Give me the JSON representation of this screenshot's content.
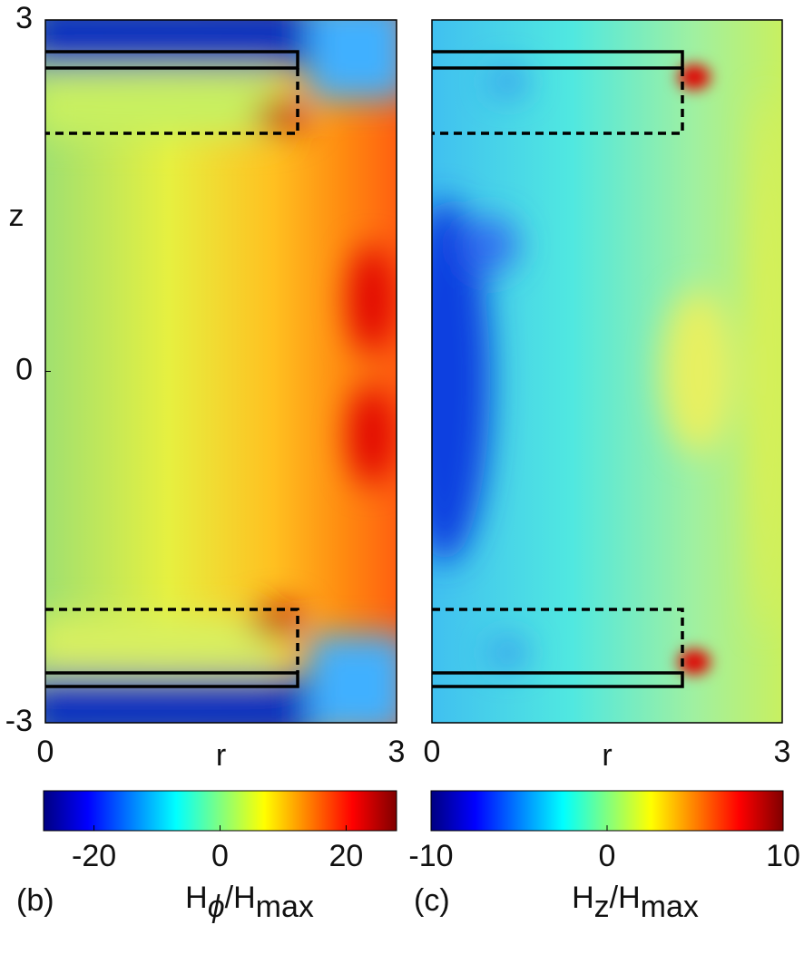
{
  "chart_data": [
    {
      "type": "heatmap",
      "panel_label": "(b)",
      "xlabel": "r",
      "ylabel": "z",
      "xlim": [
        0,
        3
      ],
      "ylim": [
        -3,
        3
      ],
      "xticks": [
        0,
        3
      ],
      "yticks": [
        -3,
        0,
        3
      ],
      "colorbar": {
        "label": [
          "H",
          "ϕ",
          "/H",
          "max"
        ],
        "clim": [
          -28,
          28
        ],
        "ticks": [
          -20,
          0,
          20
        ],
        "colormap": [
          "#000080",
          "#0000ff",
          "#0080ff",
          "#00ffff",
          "#80ff80",
          "#ffff00",
          "#ff8000",
          "#ff0000",
          "#800000"
        ]
      }
    },
    {
      "type": "heatmap",
      "panel_label": "(c)",
      "xlabel": "r",
      "xlim": [
        0,
        3
      ],
      "ylim": [
        -3,
        3
      ],
      "xticks": [
        0,
        3
      ],
      "colorbar": {
        "label": [
          "H",
          "z",
          "/H",
          "max"
        ],
        "clim": [
          -10,
          10
        ],
        "ticks": [
          -10,
          0,
          10
        ],
        "colormap": [
          "#000080",
          "#0000ff",
          "#0080ff",
          "#00ffff",
          "#80ff80",
          "#ffff00",
          "#ff8000",
          "#ff0000",
          "#800000"
        ]
      }
    }
  ]
}
